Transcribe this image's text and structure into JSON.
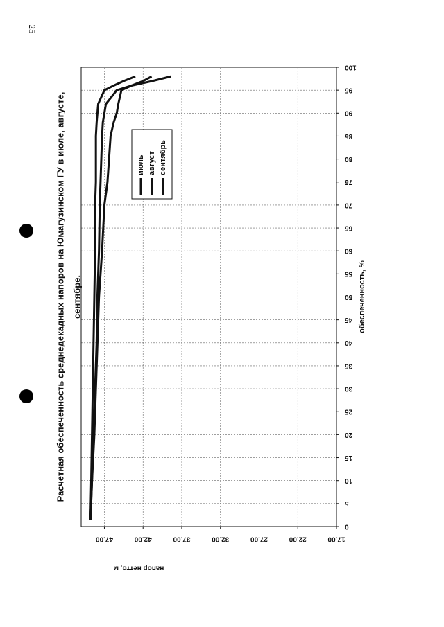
{
  "page": {
    "number": "25"
  },
  "chart_data": {
    "type": "line",
    "title": [
      "Расчетная обеспеченность среднедекадных напоров на Юмагузинском ГУ в июле, августе,",
      "сентябре."
    ],
    "x_label": "обеспеченность, %",
    "y_label": "напор нетто, м",
    "x": [
      1.5,
      10,
      20,
      30,
      40,
      50,
      60,
      70,
      75,
      80,
      85,
      88,
      90,
      92,
      95,
      96,
      97,
      98
    ],
    "series": [
      {
        "name": "июль",
        "color": "#111111",
        "values": [
          48.8,
          48.7,
          48.6,
          48.5,
          48.4,
          48.3,
          48.2,
          48.2,
          48.1,
          48.1,
          48.1,
          48.0,
          47.9,
          47.8,
          47.0,
          45.8,
          44.5,
          43.0
        ]
      },
      {
        "name": "август",
        "color": "#111111",
        "values": [
          48.8,
          48.6,
          48.4,
          48.2,
          48.0,
          47.9,
          47.7,
          47.6,
          47.5,
          47.4,
          47.3,
          47.2,
          47.0,
          46.8,
          45.4,
          43.5,
          42.0,
          40.9
        ]
      },
      {
        "name": "сентябрь",
        "color": "#111111",
        "values": [
          48.8,
          48.6,
          48.3,
          48.1,
          47.9,
          47.7,
          47.3,
          47.0,
          46.6,
          46.4,
          46.2,
          45.8,
          45.4,
          45.2,
          44.8,
          43.5,
          40.8,
          38.4
        ]
      }
    ],
    "xlim": [
      0,
      100
    ],
    "xticks": [
      0,
      5,
      10,
      15,
      20,
      25,
      30,
      35,
      40,
      45,
      50,
      55,
      60,
      65,
      70,
      75,
      80,
      85,
      90,
      95,
      100
    ],
    "ylim": [
      17,
      50
    ],
    "yticks": [
      {
        "value": 17,
        "label": "17.00"
      },
      {
        "value": 22,
        "label": "22.00"
      },
      {
        "value": 27,
        "label": "27.00"
      },
      {
        "value": 32,
        "label": "32.00"
      },
      {
        "value": 37,
        "label": "37.00"
      },
      {
        "value": 42,
        "label": "42.00"
      },
      {
        "value": 47,
        "label": "47.00"
      }
    ],
    "grid": true,
    "legend": "inside"
  }
}
